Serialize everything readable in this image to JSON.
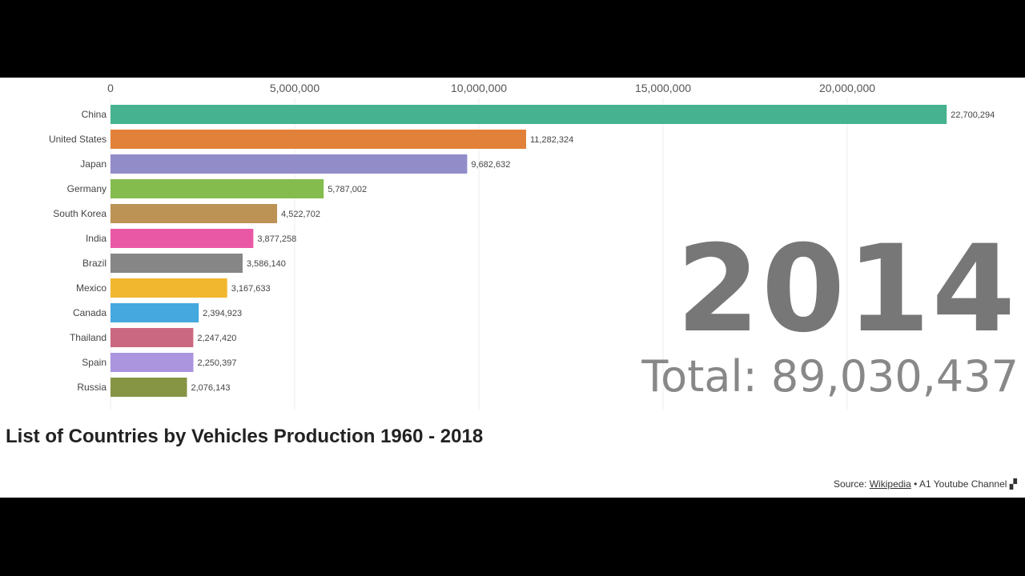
{
  "chart_data": {
    "type": "bar",
    "orientation": "horizontal",
    "title": "List of Countries by Vehicles Production 1960 - 2018",
    "xlim": [
      0,
      24000000
    ],
    "x_ticks": [
      "0",
      "5,000,000",
      "10,000,000",
      "15,000,000",
      "20,000,000"
    ],
    "x_tick_values": [
      0,
      5000000,
      10000000,
      15000000,
      20000000
    ],
    "grid": true,
    "categories": [
      "China",
      "United States",
      "Japan",
      "Germany",
      "South Korea",
      "India",
      "Brazil",
      "Mexico",
      "Canada",
      "Thailand",
      "Spain",
      "Russia"
    ],
    "values": [
      22700294,
      11282324,
      9682632,
      5787002,
      4522702,
      3877258,
      3586140,
      3167633,
      2394923,
      2247420,
      2250397,
      2076143
    ],
    "value_labels": [
      "22,700,294",
      "11,282,324",
      "9,682,632",
      "5,787,002",
      "4,522,702",
      "3,877,258",
      "3,586,140",
      "3,167,633",
      "2,394,923",
      "2,247,420",
      "2,250,397",
      "2,076,143"
    ],
    "colors": [
      "#3cae8a",
      "#e07a2e",
      "#8c86c6",
      "#7db843",
      "#b88d4b",
      "#e84fa0",
      "#808080",
      "#f0b323",
      "#3ba3dc",
      "#c8607a",
      "#a58fdc",
      "#7f8f3a"
    ]
  },
  "year": "2014",
  "total": "Total: 89,030,437",
  "source": {
    "prefix": "Source: ",
    "link": "Wikipedia",
    "suffix": " • A1 Youtube Channel"
  }
}
